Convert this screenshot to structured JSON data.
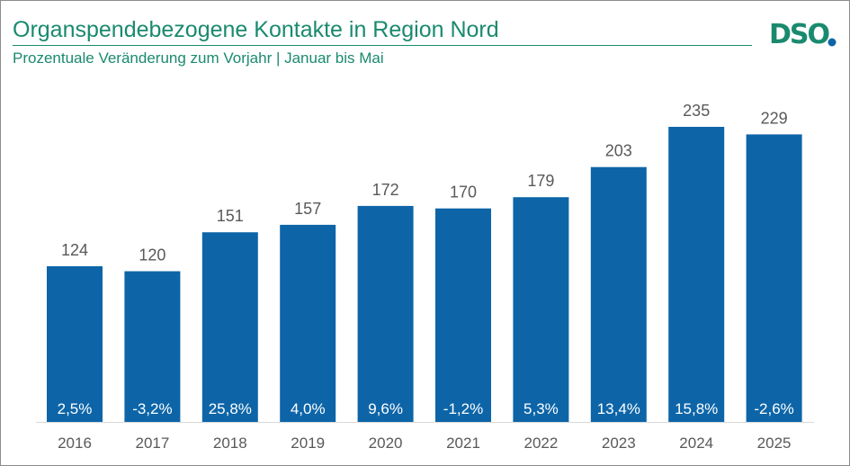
{
  "header": {
    "title": "Organspendebezogene Kontakte in Region Nord",
    "subtitle": "Prozentuale Veränderung zum Vorjahr | Januar bis Mai",
    "logo_text": "DSO"
  },
  "colors": {
    "bar": "#0d65a8",
    "brand": "#1a8a6e",
    "logo_dot": "#0d65a8"
  },
  "chart_data": {
    "type": "bar",
    "title": "Organspendebezogene Kontakte in Region Nord",
    "subtitle": "Prozentuale Veränderung zum Vorjahr | Januar bis Mai",
    "categories": [
      "2016",
      "2017",
      "2018",
      "2019",
      "2020",
      "2021",
      "2022",
      "2023",
      "2024",
      "2025"
    ],
    "values": [
      124,
      120,
      151,
      157,
      172,
      170,
      179,
      203,
      235,
      229
    ],
    "change_labels": [
      "2,5%",
      "-3,2%",
      "25,8%",
      "4,0%",
      "9,6%",
      "-1,2%",
      "5,3%",
      "13,4%",
      "15,8%",
      "-2,6%"
    ],
    "xlabel": "",
    "ylabel": "",
    "ylim": [
      0,
      235
    ],
    "grid": false,
    "legend": "none"
  }
}
